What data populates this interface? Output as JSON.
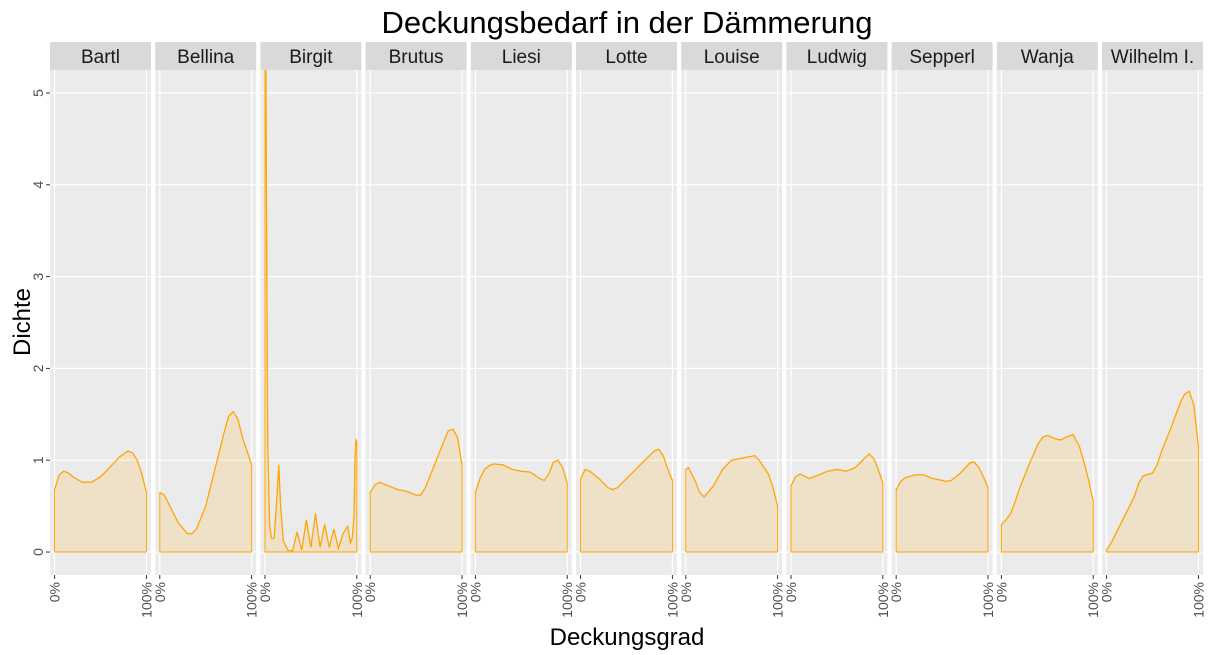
{
  "chart_data": {
    "type": "area",
    "title": "Deckungsbedarf in der Dämmerung",
    "x_label": "Deckungsgrad",
    "y_label": "Dichte",
    "color": "#ffa500",
    "grid": true,
    "xlim": [
      -0.05,
      1.05
    ],
    "xticks": [
      {
        "value": 0,
        "label": "0%"
      },
      {
        "value": 1,
        "label": "100%"
      }
    ],
    "ylim": [
      -0.25,
      5.25
    ],
    "yticks": [
      0,
      1,
      2,
      3,
      4,
      5
    ],
    "facets": [
      {
        "name": "Bartl",
        "x": [
          0,
          0.05,
          0.1,
          0.15,
          0.2,
          0.3,
          0.4,
          0.5,
          0.6,
          0.7,
          0.8,
          0.85,
          0.9,
          0.95,
          1
        ],
        "values": [
          0.68,
          0.84,
          0.88,
          0.86,
          0.82,
          0.76,
          0.76,
          0.82,
          0.92,
          1.03,
          1.1,
          1.08,
          1.0,
          0.85,
          0.65
        ]
      },
      {
        "name": "Bellina",
        "x": [
          0,
          0.05,
          0.1,
          0.2,
          0.3,
          0.35,
          0.4,
          0.5,
          0.6,
          0.7,
          0.75,
          0.8,
          0.85,
          0.9,
          0.95,
          1
        ],
        "values": [
          0.65,
          0.62,
          0.52,
          0.32,
          0.2,
          0.2,
          0.25,
          0.5,
          0.9,
          1.3,
          1.48,
          1.53,
          1.45,
          1.25,
          1.1,
          0.95
        ]
      },
      {
        "name": "Birgit",
        "x": [
          0,
          0.01,
          0.02,
          0.03,
          0.05,
          0.07,
          0.1,
          0.13,
          0.15,
          0.17,
          0.2,
          0.25,
          0.3,
          0.35,
          0.4,
          0.45,
          0.5,
          0.55,
          0.6,
          0.65,
          0.7,
          0.75,
          0.8,
          0.85,
          0.9,
          0.93,
          0.95,
          0.97,
          0.98,
          0.99,
          1
        ],
        "values": [
          5.6,
          5.2,
          3.0,
          1.2,
          0.3,
          0.15,
          0.15,
          0.6,
          0.95,
          0.5,
          0.12,
          0.02,
          0.01,
          0.22,
          0.02,
          0.35,
          0.05,
          0.42,
          0.05,
          0.3,
          0.05,
          0.25,
          0.04,
          0.2,
          0.28,
          0.1,
          0.15,
          0.4,
          1.0,
          1.22,
          1.2
        ]
      },
      {
        "name": "Brutus",
        "x": [
          0,
          0.05,
          0.1,
          0.2,
          0.3,
          0.4,
          0.5,
          0.55,
          0.6,
          0.7,
          0.8,
          0.85,
          0.9,
          0.95,
          1
        ],
        "values": [
          0.65,
          0.73,
          0.76,
          0.72,
          0.68,
          0.66,
          0.62,
          0.62,
          0.7,
          0.95,
          1.2,
          1.32,
          1.34,
          1.25,
          0.95
        ]
      },
      {
        "name": "Liesi",
        "x": [
          0,
          0.05,
          0.1,
          0.15,
          0.2,
          0.3,
          0.4,
          0.5,
          0.6,
          0.7,
          0.75,
          0.8,
          0.85,
          0.9,
          0.95,
          1
        ],
        "values": [
          0.65,
          0.8,
          0.9,
          0.94,
          0.96,
          0.95,
          0.9,
          0.88,
          0.87,
          0.8,
          0.78,
          0.85,
          0.98,
          1.0,
          0.92,
          0.75
        ]
      },
      {
        "name": "Lotte",
        "x": [
          0,
          0.05,
          0.1,
          0.2,
          0.3,
          0.35,
          0.4,
          0.5,
          0.6,
          0.7,
          0.8,
          0.85,
          0.9,
          0.95,
          1
        ],
        "values": [
          0.8,
          0.9,
          0.88,
          0.8,
          0.7,
          0.68,
          0.7,
          0.8,
          0.9,
          1.0,
          1.1,
          1.12,
          1.05,
          0.9,
          0.78
        ]
      },
      {
        "name": "Louise",
        "x": [
          0,
          0.03,
          0.1,
          0.15,
          0.2,
          0.3,
          0.4,
          0.5,
          0.6,
          0.7,
          0.75,
          0.8,
          0.9,
          0.95,
          1
        ],
        "values": [
          0.9,
          0.92,
          0.78,
          0.65,
          0.6,
          0.72,
          0.9,
          1.0,
          1.02,
          1.04,
          1.05,
          1.0,
          0.85,
          0.7,
          0.5
        ]
      },
      {
        "name": "Ludwig",
        "x": [
          0,
          0.05,
          0.1,
          0.2,
          0.3,
          0.4,
          0.5,
          0.6,
          0.7,
          0.8,
          0.85,
          0.9,
          0.95,
          1
        ],
        "values": [
          0.72,
          0.82,
          0.85,
          0.8,
          0.84,
          0.88,
          0.9,
          0.88,
          0.92,
          1.02,
          1.07,
          1.02,
          0.9,
          0.75
        ]
      },
      {
        "name": "Sepperl",
        "x": [
          0,
          0.05,
          0.1,
          0.2,
          0.3,
          0.4,
          0.5,
          0.55,
          0.6,
          0.7,
          0.8,
          0.85,
          0.9,
          0.95,
          1
        ],
        "values": [
          0.68,
          0.77,
          0.81,
          0.84,
          0.84,
          0.8,
          0.78,
          0.77,
          0.78,
          0.86,
          0.97,
          0.98,
          0.92,
          0.82,
          0.7
        ]
      },
      {
        "name": "Wanja",
        "x": [
          0,
          0.05,
          0.1,
          0.15,
          0.2,
          0.3,
          0.4,
          0.45,
          0.5,
          0.6,
          0.65,
          0.7,
          0.78,
          0.85,
          0.9,
          0.95,
          1
        ],
        "values": [
          0.3,
          0.35,
          0.42,
          0.55,
          0.7,
          0.95,
          1.18,
          1.25,
          1.27,
          1.23,
          1.22,
          1.25,
          1.28,
          1.15,
          0.98,
          0.78,
          0.55
        ]
      },
      {
        "name": "Wilhelm I.",
        "x": [
          0,
          0.05,
          0.1,
          0.15,
          0.2,
          0.3,
          0.35,
          0.4,
          0.5,
          0.55,
          0.6,
          0.7,
          0.8,
          0.85,
          0.9,
          0.95,
          1
        ],
        "values": [
          0.02,
          0.1,
          0.2,
          0.3,
          0.4,
          0.6,
          0.75,
          0.83,
          0.86,
          0.95,
          1.1,
          1.35,
          1.62,
          1.72,
          1.75,
          1.6,
          1.15
        ]
      }
    ]
  }
}
